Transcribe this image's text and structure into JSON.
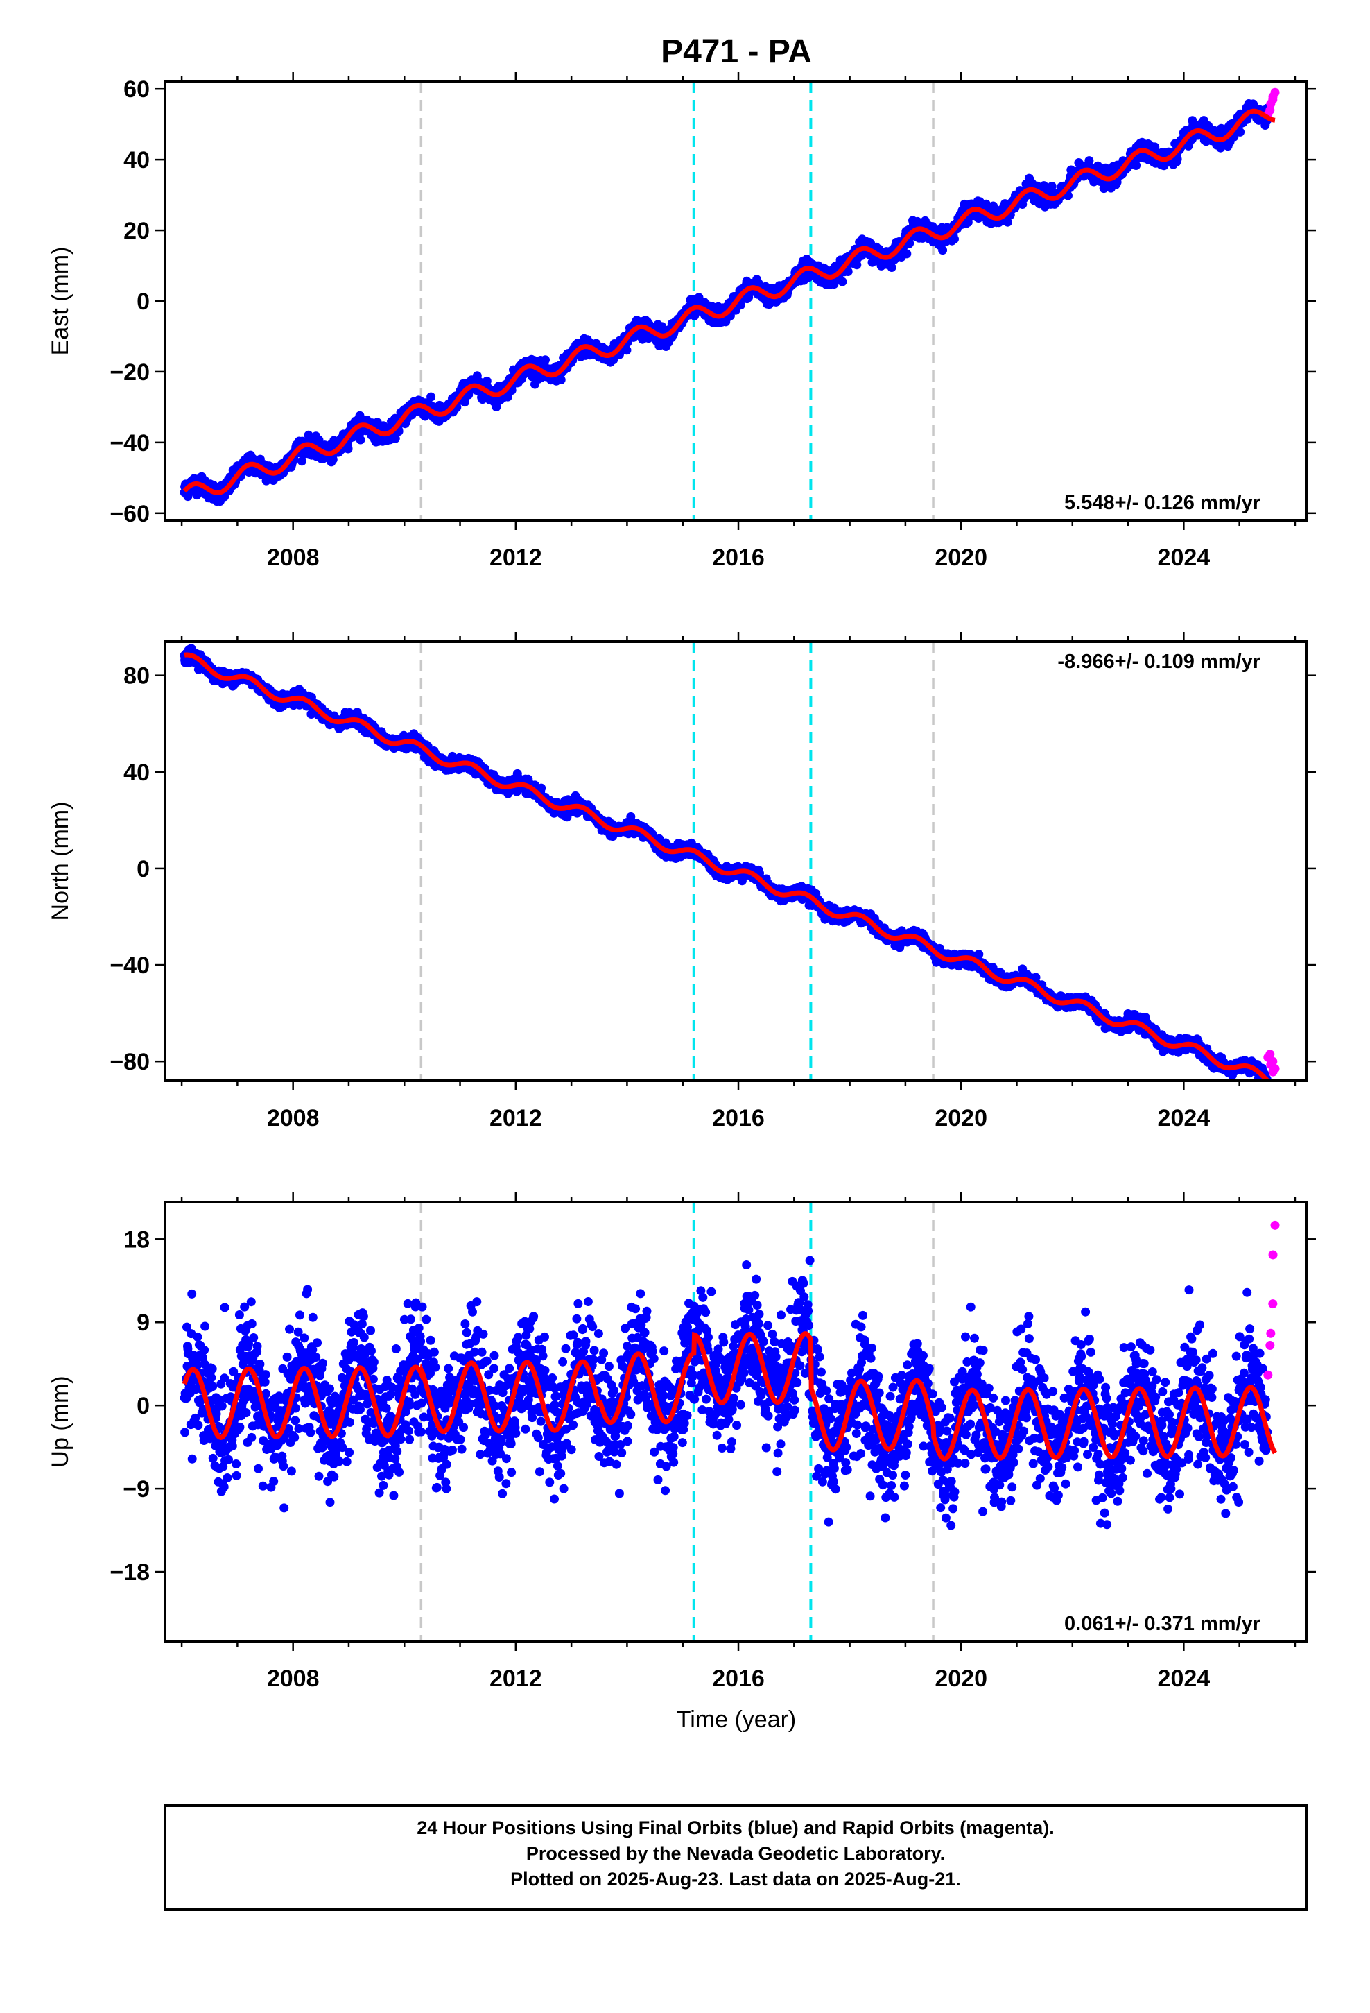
{
  "page": {
    "title": "P471 - PA",
    "caption_lines": [
      "24 Hour Positions Using Final Orbits (blue) and Rapid Orbits (magenta).",
      "Processed by the Nevada Geodetic Laboratory.",
      "Plotted on 2025-Aug-23. Last data on 2025-Aug-21."
    ]
  },
  "colors": {
    "final_orbits": "#0000ff",
    "rapid_orbits": "#ff00ff",
    "model_fit": "#ff0000",
    "equipment_change_line": "#c8c8c8",
    "event_line": "#00e5ee",
    "frame": "#000000"
  },
  "chart_data": [
    {
      "type": "scatter",
      "panel": "east",
      "xlabel": "",
      "ylabel": "East (mm)",
      "xlim": [
        2005.7,
        2026.2
      ],
      "ylim": [
        -62,
        62
      ],
      "yticks": [
        -60,
        -40,
        -20,
        0,
        20,
        40,
        60
      ],
      "xticks": [
        2008,
        2012,
        2016,
        2020,
        2024
      ],
      "grid": false,
      "rate_label": "5.548+/- 0.126 mm/yr",
      "rate_label_position": "bottom-right",
      "data_start": 2006.05,
      "data_end": 2025.64,
      "rapid_start": 2025.5,
      "trend": {
        "intercept_at_2016": 0.0,
        "rate": 5.548
      },
      "seasonal_amplitude": 2.5,
      "scatter_std": 1.2,
      "series": [
        {
          "name": "Final Orbits",
          "color": "#0000ff",
          "x": [
            2006.1,
            2008.0,
            2010.0,
            2012.0,
            2014.0,
            2015.2,
            2016.0,
            2018.0,
            2020.0,
            2022.0,
            2024.0,
            2025.5
          ],
          "y": [
            -54.5,
            -43.5,
            -32.5,
            -22.0,
            -11.0,
            -4.5,
            0.0,
            11.0,
            22.0,
            33.5,
            44.5,
            53.0
          ]
        },
        {
          "name": "Rapid Orbits",
          "color": "#ff00ff",
          "x": [
            2025.55,
            2025.6,
            2025.64
          ],
          "y": [
            54.0,
            57.0,
            59.0
          ]
        }
      ]
    },
    {
      "type": "scatter",
      "panel": "north",
      "xlabel": "",
      "ylabel": "North (mm)",
      "xlim": [
        2005.7,
        2026.2
      ],
      "ylim": [
        -88,
        94
      ],
      "yticks": [
        -80,
        -40,
        0,
        40,
        80
      ],
      "xticks": [
        2008,
        2012,
        2016,
        2020,
        2024
      ],
      "grid": false,
      "rate_label": "-8.966+/- 0.109 mm/yr",
      "rate_label_position": "top-right",
      "data_start": 2006.05,
      "data_end": 2025.64,
      "rapid_start": 2025.5,
      "trend": {
        "intercept_at_2016": -2.0,
        "rate": -8.966
      },
      "seasonal_amplitude": 2.2,
      "scatter_std": 1.3,
      "series": [
        {
          "name": "Final Orbits",
          "color": "#0000ff",
          "x": [
            2006.1,
            2008.0,
            2010.0,
            2012.0,
            2014.0,
            2016.0,
            2018.0,
            2019.5,
            2020.0,
            2022.0,
            2024.0,
            2025.5
          ],
          "y": [
            89.0,
            72.0,
            52.0,
            34.0,
            16.0,
            -2.0,
            -20.0,
            -27.0,
            -36.0,
            -54.0,
            -72.0,
            -80.0
          ]
        },
        {
          "name": "Rapid Orbits",
          "color": "#ff00ff",
          "x": [
            2025.55,
            2025.6,
            2025.64
          ],
          "y": [
            -77.0,
            -80.0,
            -83.0
          ]
        }
      ]
    },
    {
      "type": "scatter",
      "panel": "up",
      "xlabel": "Time (year)",
      "ylabel": "Up (mm)",
      "xlim": [
        2005.7,
        2026.2
      ],
      "ylim": [
        -25.5,
        22
      ],
      "yticks": [
        -18,
        -9,
        0,
        9,
        18
      ],
      "xticks": [
        2008,
        2012,
        2016,
        2020,
        2024
      ],
      "grid": false,
      "rate_label": "0.061+/- 0.371 mm/yr",
      "rate_label_position": "bottom-right",
      "data_start": 2006.05,
      "data_end": 2025.64,
      "rapid_start": 2025.5,
      "trend": {
        "intercept_at_2016": 0.0,
        "rate": 0.061
      },
      "seasonal_amplitude": 3.7,
      "scatter_std": 3.2,
      "offsets": [
        {
          "start": 2006.0,
          "end": 2010.3,
          "value": 0.8
        },
        {
          "start": 2010.3,
          "end": 2013.5,
          "value": 1.2
        },
        {
          "start": 2013.5,
          "end": 2015.2,
          "value": 2.0
        },
        {
          "start": 2015.2,
          "end": 2017.3,
          "value": 4.0
        },
        {
          "start": 2017.3,
          "end": 2019.5,
          "value": -1.2
        },
        {
          "start": 2019.5,
          "end": 2026.0,
          "value": -2.3
        }
      ],
      "series": [
        {
          "name": "Final Orbits",
          "color": "#0000ff",
          "x": [
            2006.1,
            2008.0,
            2010.0,
            2012.0,
            2014.0,
            2016.0,
            2018.0,
            2020.0,
            2022.0,
            2024.0,
            2025.5
          ],
          "y": [
            0.5,
            1.0,
            0.5,
            1.5,
            2.0,
            4.0,
            -1.0,
            -2.0,
            -2.0,
            -2.5,
            -3.0
          ]
        },
        {
          "name": "Rapid Orbits",
          "color": "#ff00ff",
          "x": [
            2025.55,
            2025.6,
            2025.64
          ],
          "y": [
            6.5,
            11.0,
            19.5
          ]
        }
      ]
    }
  ],
  "vertical_lines": [
    {
      "x": 2010.3,
      "kind": "equipment",
      "color": "#c8c8c8"
    },
    {
      "x": 2015.2,
      "kind": "event",
      "color": "#00e5ee"
    },
    {
      "x": 2017.3,
      "kind": "event",
      "color": "#00e5ee"
    },
    {
      "x": 2019.5,
      "kind": "equipment",
      "color": "#c8c8c8"
    }
  ]
}
